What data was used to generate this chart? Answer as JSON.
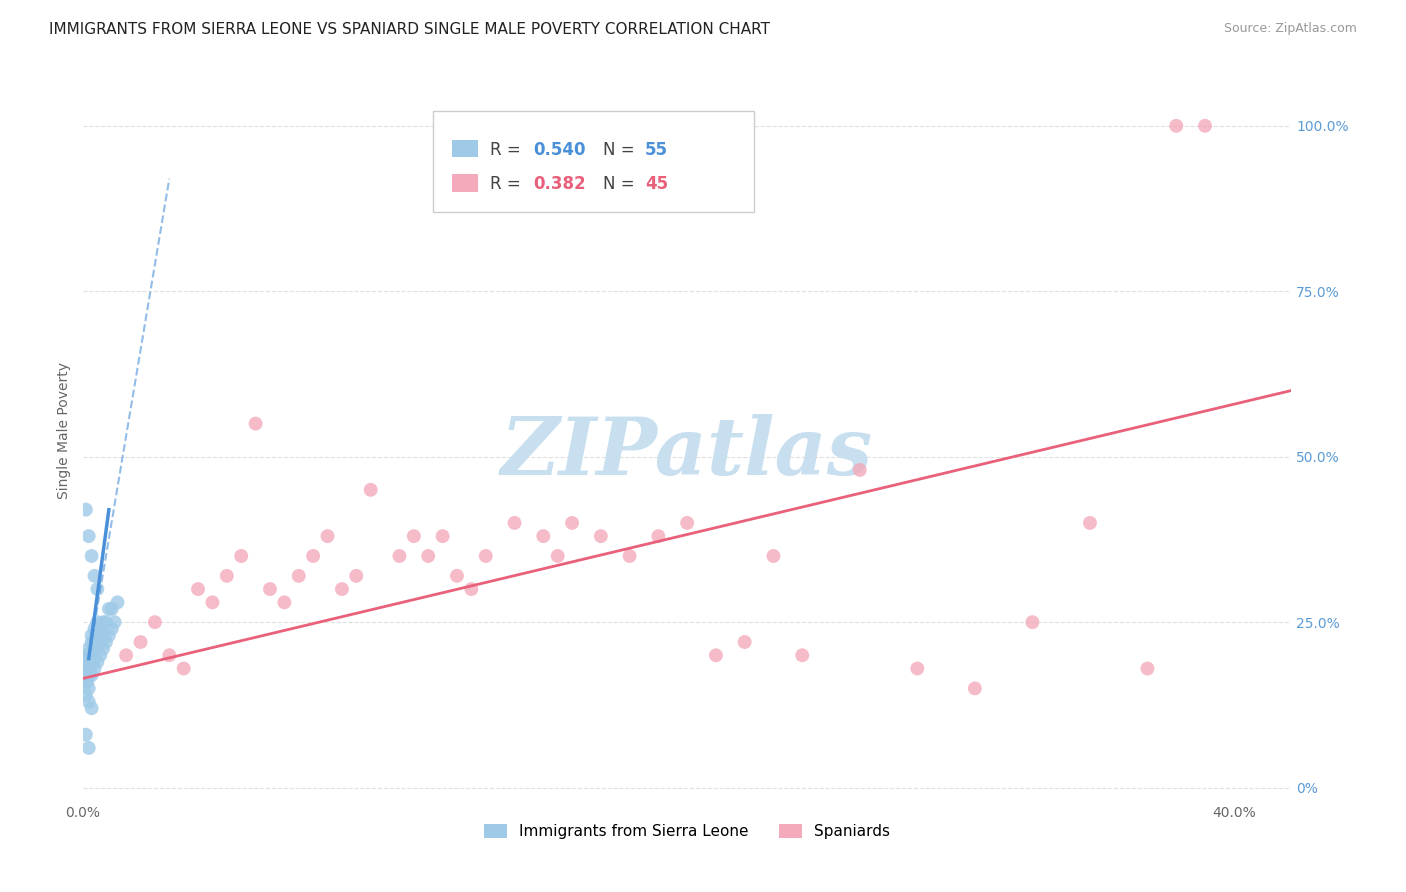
{
  "title": "IMMIGRANTS FROM SIERRA LEONE VS SPANIARD SINGLE MALE POVERTY CORRELATION CHART",
  "source": "Source: ZipAtlas.com",
  "ylabel": "Single Male Poverty",
  "ytick_vals": [
    0.0,
    0.25,
    0.5,
    0.75,
    1.0
  ],
  "ytick_labels": [
    "0%",
    "25.0%",
    "50.0%",
    "75.0%",
    "100.0%"
  ],
  "xlim": [
    0.0,
    0.42
  ],
  "ylim": [
    -0.02,
    1.1
  ],
  "legend1_label": "Immigrants from Sierra Leone",
  "legend2_label": "Spaniards",
  "R1": 0.54,
  "N1": 55,
  "R2": 0.382,
  "N2": 45,
  "color_blue": "#9ECAE8",
  "color_pink": "#F4AABB",
  "color_blue_line": "#4A90D9",
  "color_pink_line": "#E8607A",
  "watermark_color": "#C8DFF0",
  "blue_scatter_x": [
    0.0005,
    0.001,
    0.001,
    0.001,
    0.001,
    0.0015,
    0.0015,
    0.0015,
    0.002,
    0.002,
    0.002,
    0.002,
    0.002,
    0.002,
    0.0025,
    0.0025,
    0.003,
    0.003,
    0.003,
    0.003,
    0.003,
    0.0035,
    0.0035,
    0.004,
    0.004,
    0.004,
    0.004,
    0.005,
    0.005,
    0.005,
    0.005,
    0.006,
    0.006,
    0.006,
    0.007,
    0.007,
    0.007,
    0.008,
    0.008,
    0.009,
    0.009,
    0.01,
    0.01,
    0.011,
    0.012,
    0.001,
    0.002,
    0.003,
    0.004,
    0.005,
    0.001,
    0.002,
    0.003,
    0.001,
    0.002
  ],
  "blue_scatter_y": [
    0.17,
    0.16,
    0.18,
    0.19,
    0.2,
    0.16,
    0.17,
    0.19,
    0.15,
    0.17,
    0.18,
    0.19,
    0.2,
    0.21,
    0.18,
    0.2,
    0.17,
    0.19,
    0.2,
    0.22,
    0.23,
    0.19,
    0.21,
    0.18,
    0.2,
    0.22,
    0.24,
    0.19,
    0.21,
    0.23,
    0.25,
    0.2,
    0.22,
    0.24,
    0.21,
    0.23,
    0.25,
    0.22,
    0.25,
    0.23,
    0.27,
    0.24,
    0.27,
    0.25,
    0.28,
    0.42,
    0.38,
    0.35,
    0.32,
    0.3,
    0.14,
    0.13,
    0.12,
    0.08,
    0.06
  ],
  "pink_scatter_x": [
    0.015,
    0.02,
    0.025,
    0.03,
    0.035,
    0.04,
    0.045,
    0.05,
    0.055,
    0.06,
    0.065,
    0.07,
    0.075,
    0.08,
    0.085,
    0.09,
    0.095,
    0.1,
    0.11,
    0.115,
    0.12,
    0.125,
    0.13,
    0.135,
    0.14,
    0.15,
    0.16,
    0.165,
    0.17,
    0.18,
    0.19,
    0.2,
    0.21,
    0.22,
    0.23,
    0.24,
    0.25,
    0.27,
    0.29,
    0.31,
    0.33,
    0.35,
    0.37,
    0.38,
    0.39
  ],
  "pink_scatter_y": [
    0.2,
    0.22,
    0.25,
    0.2,
    0.18,
    0.3,
    0.28,
    0.32,
    0.35,
    0.55,
    0.3,
    0.28,
    0.32,
    0.35,
    0.38,
    0.3,
    0.32,
    0.45,
    0.35,
    0.38,
    0.35,
    0.38,
    0.32,
    0.3,
    0.35,
    0.4,
    0.38,
    0.35,
    0.4,
    0.38,
    0.35,
    0.38,
    0.4,
    0.2,
    0.22,
    0.35,
    0.2,
    0.48,
    0.18,
    0.15,
    0.25,
    0.4,
    0.18,
    1.0,
    1.0
  ],
  "blue_solid_line_x": [
    0.002,
    0.009
  ],
  "blue_solid_line_y": [
    0.195,
    0.42
  ],
  "blue_dash_line_x": [
    0.002,
    0.03
  ],
  "blue_dash_line_y": [
    0.195,
    0.92
  ],
  "pink_line_x": [
    0.0,
    0.42
  ],
  "pink_line_y": [
    0.165,
    0.6
  ]
}
